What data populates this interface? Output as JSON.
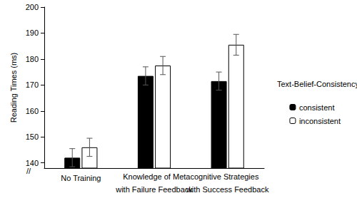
{
  "chart_data": {
    "type": "bar",
    "y_label": "Reading Times (ms)",
    "legend_title": "Text-Belief-Consistency",
    "annotations": [
      "Knowledge of Metacognitive Strategies",
      "//"
    ],
    "categories": [
      "No Training",
      "with Failure Feedback",
      "with Success Feedback"
    ],
    "series": [
      {
        "name": "consistent",
        "color": "#000000",
        "values": [
          142,
          173.5,
          171.5
        ],
        "errors": [
          3.5,
          3.5,
          3.5
        ]
      },
      {
        "name": "inconsistent",
        "color": "#ffffff",
        "values": [
          146,
          177.5,
          185.5
        ],
        "errors": [
          3.5,
          3.5,
          4
        ]
      }
    ],
    "ylim": [
      138,
      200
    ],
    "yticks": [
      140,
      150,
      160,
      170,
      180,
      190,
      200
    ],
    "grid": false,
    "legend": "right"
  }
}
